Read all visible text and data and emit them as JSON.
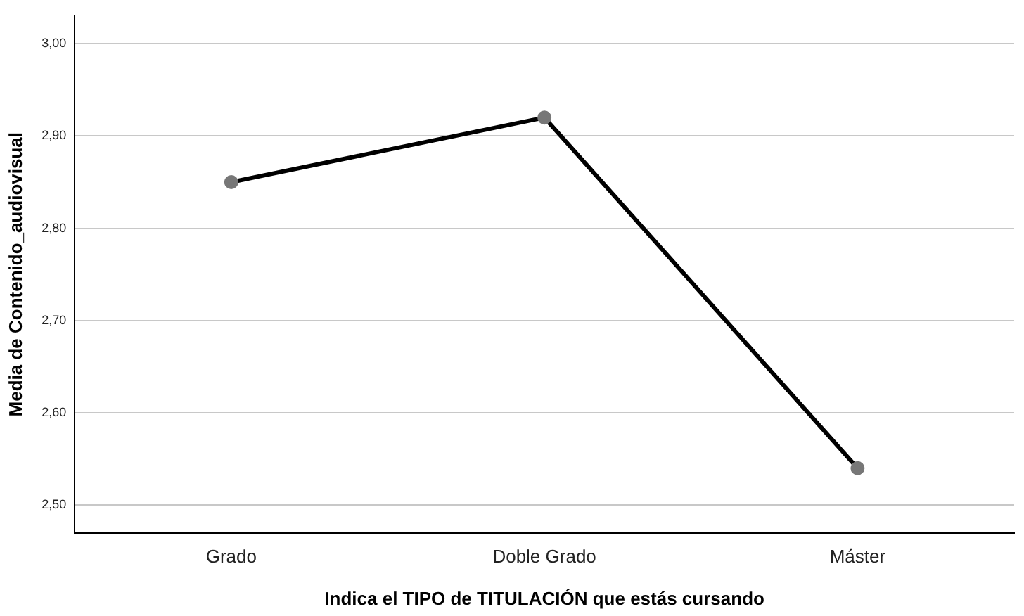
{
  "chart_data": {
    "type": "line",
    "xlabel": "Indica el TIPO de TITULACIÓN que estás cursando",
    "ylabel": "Media de Contenido_audiovisual",
    "categories": [
      "Grado",
      "Doble Grado",
      "Máster"
    ],
    "series": [
      {
        "color": "#000000",
        "values": [
          2.85,
          2.92,
          2.54
        ]
      }
    ],
    "ylim": [
      2.47,
      3.03
    ],
    "yticks": [
      {
        "value": 2.5,
        "label": "2,50"
      },
      {
        "value": 2.6,
        "label": "2,60"
      },
      {
        "value": 2.7,
        "label": "2,70"
      },
      {
        "value": 2.8,
        "label": "2,80"
      },
      {
        "value": 2.9,
        "label": "2,90"
      },
      {
        "value": 3.0,
        "label": "3,00"
      }
    ],
    "grid": "y",
    "legend": false,
    "marker": "circle",
    "line_style": "solid"
  }
}
